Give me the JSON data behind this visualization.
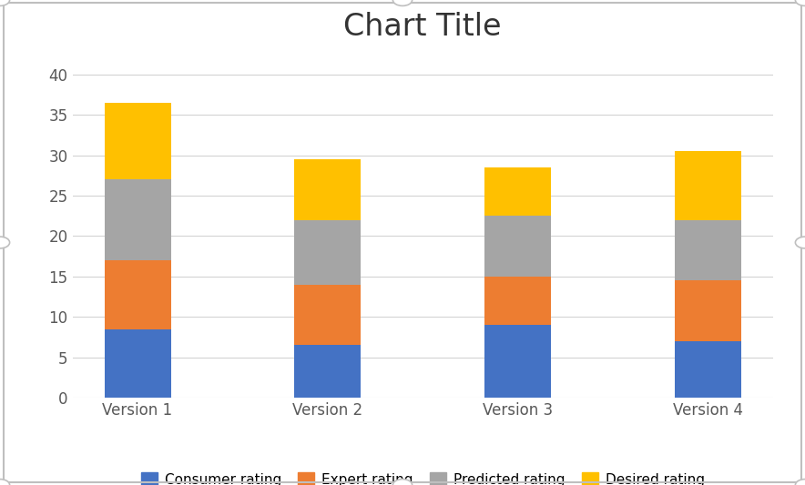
{
  "categories": [
    "Version 1",
    "Version 2",
    "Version 3",
    "Version 4"
  ],
  "series": {
    "Consumer rating": [
      8.5,
      6.5,
      9.0,
      7.0
    ],
    "Expert rating": [
      8.5,
      7.5,
      6.0,
      7.5
    ],
    "Predicted rating": [
      10.0,
      8.0,
      7.5,
      7.5
    ],
    "Desired rating": [
      9.5,
      7.5,
      6.0,
      8.5
    ]
  },
  "colors": {
    "Consumer rating": "#4472C4",
    "Expert rating": "#ED7D31",
    "Predicted rating": "#A5A5A5",
    "Desired rating": "#FFC000"
  },
  "title": "Chart Title",
  "title_fontsize": 24,
  "ylim": [
    0,
    42
  ],
  "yticks": [
    0,
    5,
    10,
    15,
    20,
    25,
    30,
    35,
    40
  ],
  "bar_width": 0.35,
  "background_color": "#FFFFFF",
  "outer_border_color": "#BFBFBF",
  "grid_color": "#D3D3D3",
  "legend_fontsize": 11,
  "tick_fontsize": 12,
  "axis_label_color": "#595959",
  "tick_label_color": "#595959"
}
